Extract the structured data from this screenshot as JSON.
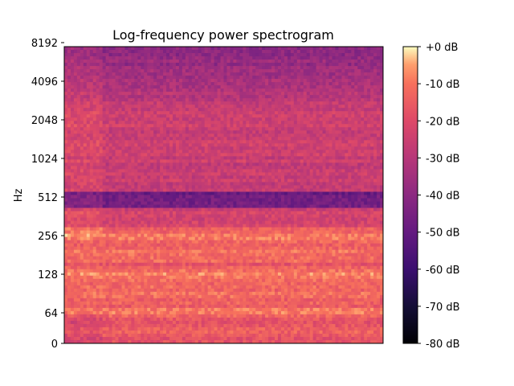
{
  "chart_data": [
    {
      "type": "heatmap",
      "title": "Log-frequency power spectrogram",
      "xlabel": "",
      "ylabel": "Hz",
      "y_scale": "log2",
      "y_ticks": [
        "0",
        "64",
        "128",
        "256",
        "512",
        "1024",
        "2048",
        "4096",
        "8192"
      ],
      "y_tick_values": [
        0,
        64,
        128,
        256,
        512,
        1024,
        2048,
        4096,
        8192
      ],
      "x_ticks": [],
      "grid": false,
      "colormap": "magma",
      "strong_bands_hz": [
        32,
        45,
        64,
        90,
        128,
        180,
        256
      ],
      "weak_band_hz": [
        430,
        560
      ],
      "colorbar": {
        "range_db": [
          -80,
          0
        ],
        "ticks": [
          "+0 dB",
          "-10 dB",
          "-20 dB",
          "-30 dB",
          "-40 dB",
          "-50 dB",
          "-60 dB",
          "-70 dB",
          "-80 dB"
        ],
        "tick_values": [
          0,
          -10,
          -20,
          -30,
          -40,
          -50,
          -60,
          -70,
          -80
        ]
      }
    }
  ]
}
